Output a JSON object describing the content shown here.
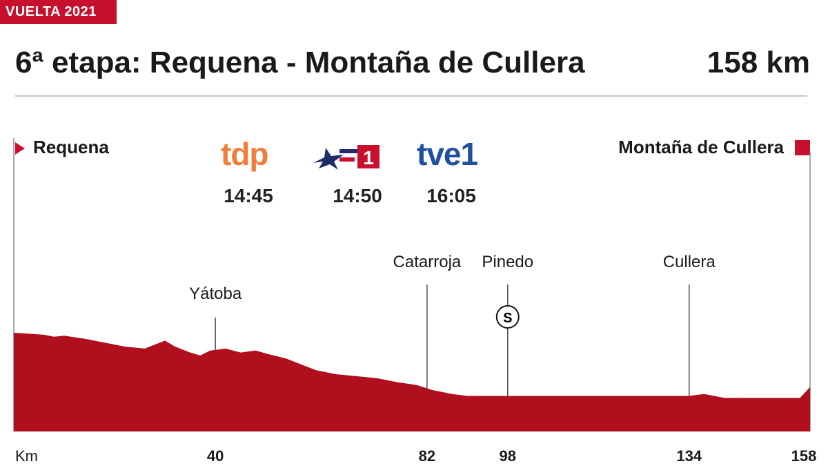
{
  "header": {
    "tag": "VUELTA 2021",
    "title": "6ª etapa: Requena - Montaña de Cullera",
    "distance": "158 km"
  },
  "start": "Requena",
  "finish": "Montaña de Cullera",
  "broadcasters": [
    {
      "name": "tdp",
      "time": "14:45"
    },
    {
      "name": "1",
      "time": "14:50"
    },
    {
      "name": "tve1",
      "time": "16:05"
    }
  ],
  "colors": {
    "accent": "#c8102e",
    "profile": "#b00f1e",
    "tdp": "#f07d3a",
    "tve": "#1f4fa0"
  },
  "icons": {
    "start": "flag-triangle-icon",
    "finish": "finish-square-icon",
    "sprint": "sprint-s-icon",
    "la1": "la1-logo-icon"
  },
  "chart_data": {
    "type": "area",
    "xlabel": "Km",
    "xlim": [
      0,
      158
    ],
    "ticks": [
      "40",
      "82",
      "98",
      "134",
      "158"
    ],
    "tick_values": [
      40,
      82,
      98,
      134,
      158
    ],
    "places": [
      {
        "name": "Yátoba",
        "km": 40
      },
      {
        "name": "Catarroja",
        "km": 82
      },
      {
        "name": "Pinedo",
        "km": 98,
        "sprint": "S"
      },
      {
        "name": "Cullera",
        "km": 134
      }
    ],
    "profile": [
      [
        0,
        1.0
      ],
      [
        3,
        0.99
      ],
      [
        6,
        0.98
      ],
      [
        8,
        0.96
      ],
      [
        10,
        0.97
      ],
      [
        14,
        0.94
      ],
      [
        18,
        0.9
      ],
      [
        22,
        0.86
      ],
      [
        26,
        0.84
      ],
      [
        30,
        0.92
      ],
      [
        32,
        0.86
      ],
      [
        35,
        0.8
      ],
      [
        37,
        0.77
      ],
      [
        39,
        0.82
      ],
      [
        42,
        0.84
      ],
      [
        45,
        0.8
      ],
      [
        48,
        0.82
      ],
      [
        50,
        0.79
      ],
      [
        54,
        0.74
      ],
      [
        58,
        0.66
      ],
      [
        60,
        0.62
      ],
      [
        64,
        0.58
      ],
      [
        68,
        0.56
      ],
      [
        72,
        0.54
      ],
      [
        76,
        0.5
      ],
      [
        80,
        0.47
      ],
      [
        83,
        0.42
      ],
      [
        87,
        0.38
      ],
      [
        90,
        0.36
      ],
      [
        100,
        0.36
      ],
      [
        120,
        0.36
      ],
      [
        134,
        0.36
      ],
      [
        137,
        0.38
      ],
      [
        141,
        0.34
      ],
      [
        150,
        0.34
      ],
      [
        156,
        0.34
      ],
      [
        158,
        0.45
      ]
    ]
  }
}
